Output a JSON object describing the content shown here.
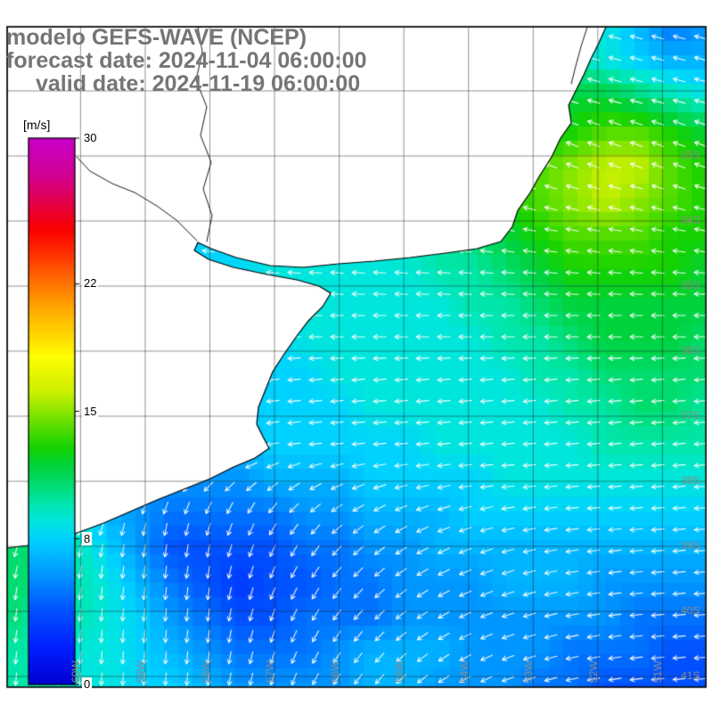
{
  "title": {
    "line1": "modelo GEFS-WAVE (NCEP)",
    "line2": "forecast date: 2024-11-04 06:00:00",
    "line3": "valid date: 2024-11-19 06:00:00",
    "color": "#757575"
  },
  "colorbar": {
    "unit_label": "[m/s]",
    "ticks": [
      30,
      22,
      15,
      8,
      0
    ],
    "min": 0,
    "max": 30,
    "stops": [
      [
        0,
        "#0000d2"
      ],
      [
        2,
        "#001eff"
      ],
      [
        4,
        "#0050ff"
      ],
      [
        6,
        "#0096ff"
      ],
      [
        8,
        "#00d2ff"
      ],
      [
        9,
        "#00e6dc"
      ],
      [
        10,
        "#00e6aa"
      ],
      [
        11,
        "#00dc6e"
      ],
      [
        12,
        "#00d23c"
      ],
      [
        13,
        "#14d200"
      ],
      [
        14,
        "#50dc00"
      ],
      [
        15,
        "#8ce600"
      ],
      [
        16,
        "#c8f000"
      ],
      [
        17,
        "#e6f500"
      ],
      [
        18,
        "#ffff00"
      ],
      [
        19,
        "#ffdc00"
      ],
      [
        20,
        "#ffbe00"
      ],
      [
        21,
        "#ff9b00"
      ],
      [
        22,
        "#ff7300"
      ],
      [
        23,
        "#ff4b00"
      ],
      [
        24,
        "#ff2300"
      ],
      [
        25,
        "#fa0000"
      ],
      [
        26,
        "#eb0032"
      ],
      [
        27,
        "#dc0064"
      ],
      [
        28,
        "#d20096"
      ],
      [
        29,
        "#cd00af"
      ],
      [
        30,
        "#c800c8"
      ]
    ]
  },
  "map": {
    "lat_labels": [
      "33S",
      "34S",
      "35S",
      "36S",
      "37S",
      "38S",
      "39S",
      "40S",
      "41S"
    ],
    "lon_labels": [
      "60W",
      "59W",
      "58W",
      "57W",
      "56W",
      "55W",
      "54W",
      "53W",
      "52W",
      "51W"
    ]
  },
  "chart_data": {
    "type": "heatmap",
    "title": "modelo GEFS-WAVE (NCEP)",
    "value_units": "m/s",
    "value_range": [
      0,
      30
    ],
    "field": {
      "cols": 22,
      "rows": 20,
      "speed": [
        [
          8,
          8,
          8,
          8,
          8,
          8,
          8,
          8,
          8,
          8,
          8,
          8,
          8,
          8,
          8,
          8,
          8,
          8,
          9,
          7,
          5,
          6
        ],
        [
          8,
          8,
          8,
          8,
          8,
          8,
          8,
          8,
          8,
          8,
          8,
          8,
          8,
          8,
          8,
          8,
          9,
          10,
          9,
          8,
          7,
          7
        ],
        [
          8,
          8,
          8,
          8,
          8,
          8,
          8,
          8,
          8,
          8,
          8,
          8,
          8,
          9,
          9,
          10,
          11,
          12,
          12,
          11,
          10,
          9
        ],
        [
          8,
          8,
          8,
          8,
          8,
          8,
          8,
          8,
          8,
          8,
          8,
          9,
          9,
          10,
          11,
          12,
          12,
          13,
          14,
          14,
          13,
          12
        ],
        [
          8,
          8,
          8,
          8,
          8,
          8,
          8,
          8,
          8,
          9,
          9,
          9,
          10,
          11,
          12,
          13,
          14,
          15,
          16,
          16,
          14,
          13
        ],
        [
          8,
          8,
          8,
          8,
          8,
          8,
          8,
          8,
          9,
          9,
          9,
          9,
          10,
          11,
          12,
          13,
          14,
          15,
          16,
          15,
          14,
          13
        ],
        [
          8,
          8,
          8,
          8,
          8,
          8,
          8,
          9,
          9,
          9,
          9,
          9,
          10,
          10,
          11,
          12,
          13,
          14,
          14,
          14,
          13,
          13
        ],
        [
          8,
          8,
          8,
          8,
          8,
          8,
          8,
          8,
          9,
          9,
          9,
          9,
          9,
          10,
          10,
          11,
          12,
          13,
          13,
          13,
          13,
          12
        ],
        [
          8,
          8,
          8,
          8,
          8,
          8,
          8,
          8,
          9,
          9,
          9,
          9,
          9,
          9,
          10,
          10,
          11,
          12,
          12,
          12,
          12,
          12
        ],
        [
          7,
          7,
          7,
          7,
          7,
          7,
          8,
          8,
          8,
          9,
          9,
          9,
          9,
          9,
          9,
          10,
          10,
          11,
          12,
          12,
          12,
          11
        ],
        [
          7,
          7,
          7,
          7,
          7,
          7,
          8,
          8,
          8,
          8,
          9,
          9,
          9,
          9,
          9,
          9,
          10,
          10,
          11,
          11,
          11,
          11
        ],
        [
          7,
          7,
          7,
          7,
          7,
          7,
          7,
          8,
          8,
          8,
          8,
          9,
          9,
          9,
          9,
          9,
          9,
          10,
          10,
          11,
          11,
          10
        ],
        [
          6,
          6,
          6,
          6,
          6,
          7,
          7,
          7,
          8,
          8,
          8,
          8,
          8,
          9,
          9,
          9,
          9,
          9,
          10,
          10,
          10,
          10
        ],
        [
          8,
          8,
          7,
          6,
          6,
          6,
          6,
          6,
          7,
          7,
          7,
          8,
          8,
          8,
          8,
          9,
          9,
          9,
          9,
          9,
          9,
          9
        ],
        [
          10,
          10,
          9,
          7,
          6,
          5,
          5,
          5,
          5,
          6,
          6,
          7,
          7,
          7,
          8,
          8,
          8,
          8,
          8,
          8,
          8,
          8
        ],
        [
          11,
          11,
          10,
          8,
          6,
          4,
          4,
          4,
          4,
          5,
          5,
          6,
          6,
          7,
          7,
          7,
          7,
          7,
          7,
          7,
          7,
          7
        ],
        [
          11,
          11,
          10,
          9,
          7,
          5,
          4,
          3,
          4,
          4,
          5,
          5,
          6,
          6,
          6,
          7,
          7,
          7,
          6,
          6,
          6,
          6
        ],
        [
          11,
          10,
          10,
          9,
          8,
          6,
          5,
          4,
          4,
          5,
          5,
          5,
          6,
          6,
          6,
          6,
          6,
          6,
          6,
          5,
          5,
          5
        ],
        [
          10,
          10,
          9,
          9,
          8,
          7,
          6,
          5,
          5,
          5,
          6,
          7,
          7,
          7,
          6,
          6,
          6,
          5,
          5,
          5,
          4,
          4
        ],
        [
          10,
          10,
          9,
          9,
          8,
          8,
          7,
          6,
          6,
          6,
          6,
          7,
          7,
          6,
          6,
          6,
          5,
          5,
          4,
          4,
          4,
          4
        ]
      ],
      "direction_deg": [
        [
          165,
          165,
          165,
          165,
          165,
          165,
          165,
          165,
          165,
          165,
          165,
          165,
          165,
          165,
          165,
          165,
          165,
          165,
          165,
          165,
          165,
          165
        ],
        [
          165,
          165,
          165,
          165,
          165,
          165,
          165,
          165,
          165,
          165,
          165,
          165,
          165,
          165,
          165,
          165,
          165,
          165,
          165,
          165,
          165,
          165
        ],
        [
          165,
          165,
          165,
          165,
          165,
          165,
          165,
          165,
          165,
          165,
          165,
          165,
          165,
          165,
          165,
          165,
          165,
          165,
          165,
          165,
          165,
          165
        ],
        [
          160,
          160,
          160,
          160,
          160,
          160,
          160,
          160,
          160,
          160,
          160,
          160,
          160,
          160,
          160,
          160,
          160,
          160,
          160,
          160,
          160,
          160
        ],
        [
          160,
          160,
          160,
          160,
          160,
          160,
          160,
          160,
          160,
          160,
          160,
          160,
          160,
          160,
          160,
          160,
          160,
          160,
          160,
          160,
          160,
          160
        ],
        [
          165,
          165,
          165,
          165,
          165,
          165,
          165,
          165,
          165,
          165,
          165,
          165,
          165,
          165,
          165,
          165,
          165,
          165,
          165,
          165,
          165,
          165
        ],
        [
          170,
          170,
          170,
          170,
          170,
          170,
          170,
          170,
          170,
          170,
          170,
          170,
          170,
          170,
          170,
          170,
          170,
          170,
          170,
          170,
          170,
          170
        ],
        [
          175,
          175,
          175,
          175,
          175,
          175,
          175,
          175,
          175,
          175,
          175,
          175,
          175,
          175,
          175,
          175,
          175,
          175,
          175,
          175,
          175,
          175
        ],
        [
          180,
          180,
          180,
          180,
          180,
          180,
          180,
          180,
          180,
          180,
          180,
          180,
          180,
          180,
          180,
          180,
          180,
          180,
          180,
          180,
          180,
          180
        ],
        [
          180,
          180,
          180,
          180,
          180,
          180,
          180,
          180,
          180,
          180,
          180,
          180,
          180,
          180,
          180,
          180,
          180,
          180,
          180,
          180,
          180,
          180
        ],
        [
          185,
          185,
          185,
          185,
          185,
          185,
          185,
          185,
          185,
          185,
          185,
          185,
          185,
          185,
          185,
          185,
          185,
          185,
          185,
          185,
          185,
          185
        ],
        [
          185,
          185,
          185,
          185,
          185,
          185,
          185,
          185,
          185,
          185,
          185,
          185,
          185,
          185,
          185,
          185,
          185,
          185,
          185,
          185,
          185,
          185
        ],
        [
          190,
          190,
          190,
          195,
          200,
          200,
          200,
          195,
          190,
          185,
          185,
          185,
          185,
          185,
          185,
          185,
          185,
          185,
          185,
          185,
          185,
          185
        ],
        [
          210,
          210,
          215,
          220,
          225,
          225,
          220,
          215,
          210,
          205,
          200,
          195,
          190,
          190,
          185,
          185,
          185,
          185,
          185,
          185,
          185,
          185
        ],
        [
          240,
          240,
          245,
          250,
          255,
          255,
          250,
          245,
          235,
          225,
          215,
          210,
          205,
          200,
          195,
          190,
          190,
          185,
          185,
          185,
          185,
          185
        ],
        [
          255,
          255,
          258,
          260,
          262,
          262,
          258,
          252,
          245,
          235,
          225,
          218,
          210,
          205,
          200,
          195,
          190,
          190,
          188,
          186,
          185,
          185
        ],
        [
          260,
          260,
          262,
          264,
          265,
          264,
          262,
          256,
          248,
          240,
          230,
          222,
          214,
          208,
          202,
          198,
          194,
          190,
          188,
          186,
          185,
          185
        ],
        [
          262,
          262,
          264,
          266,
          266,
          265,
          262,
          257,
          250,
          242,
          233,
          225,
          217,
          210,
          204,
          199,
          195,
          191,
          188,
          186,
          185,
          184
        ],
        [
          264,
          264,
          265,
          266,
          267,
          266,
          263,
          258,
          251,
          244,
          236,
          228,
          220,
          212,
          206,
          200,
          196,
          192,
          189,
          187,
          185,
          184
        ],
        [
          265,
          265,
          266,
          267,
          267,
          266,
          264,
          259,
          253,
          246,
          238,
          230,
          222,
          214,
          208,
          202,
          197,
          193,
          190,
          187,
          185,
          184
        ]
      ]
    },
    "coastline": [
      [
        8,
        30
      ],
      [
        680,
        30
      ],
      [
        672,
        48
      ],
      [
        663,
        66
      ],
      [
        655,
        84
      ],
      [
        647,
        100
      ],
      [
        638,
        118
      ],
      [
        641,
        138
      ],
      [
        629,
        155
      ],
      [
        619,
        176
      ],
      [
        605,
        198
      ],
      [
        595,
        216
      ],
      [
        581,
        236
      ],
      [
        575,
        254
      ],
      [
        562,
        271
      ],
      [
        535,
        279
      ],
      [
        500,
        284
      ],
      [
        460,
        289
      ],
      [
        420,
        293
      ],
      [
        380,
        296
      ],
      [
        340,
        300
      ],
      [
        303,
        298
      ],
      [
        265,
        289
      ],
      [
        237,
        279
      ],
      [
        222,
        272
      ],
      [
        218,
        281
      ],
      [
        234,
        291
      ],
      [
        262,
        300
      ],
      [
        300,
        308
      ],
      [
        333,
        314
      ],
      [
        358,
        321
      ],
      [
        371,
        329
      ],
      [
        362,
        344
      ],
      [
        346,
        360
      ],
      [
        333,
        377
      ],
      [
        319,
        397
      ],
      [
        306,
        417
      ],
      [
        298,
        437
      ],
      [
        290,
        457
      ],
      [
        288,
        476
      ],
      [
        295,
        490
      ],
      [
        302,
        503
      ],
      [
        286,
        514
      ],
      [
        262,
        524
      ],
      [
        236,
        537
      ],
      [
        206,
        549
      ],
      [
        176,
        561
      ],
      [
        146,
        574
      ],
      [
        116,
        587
      ],
      [
        89,
        597
      ],
      [
        61,
        606
      ],
      [
        31,
        612
      ],
      [
        8,
        615
      ]
    ],
    "rivers": [
      [
        [
          232,
          271
        ],
        [
          238,
          242
        ],
        [
          228,
          212
        ],
        [
          237,
          182
        ],
        [
          225,
          152
        ],
        [
          232,
          120
        ],
        [
          220,
          90
        ],
        [
          227,
          58
        ],
        [
          222,
          30
        ]
      ],
      [
        [
          221,
          270
        ],
        [
          198,
          247
        ],
        [
          176,
          231
        ],
        [
          151,
          216
        ],
        [
          126,
          206
        ],
        [
          101,
          192
        ],
        [
          86,
          176
        ]
      ],
      [
        [
          659,
          30
        ],
        [
          652,
          52
        ],
        [
          646,
          74
        ],
        [
          641,
          94
        ]
      ]
    ]
  }
}
